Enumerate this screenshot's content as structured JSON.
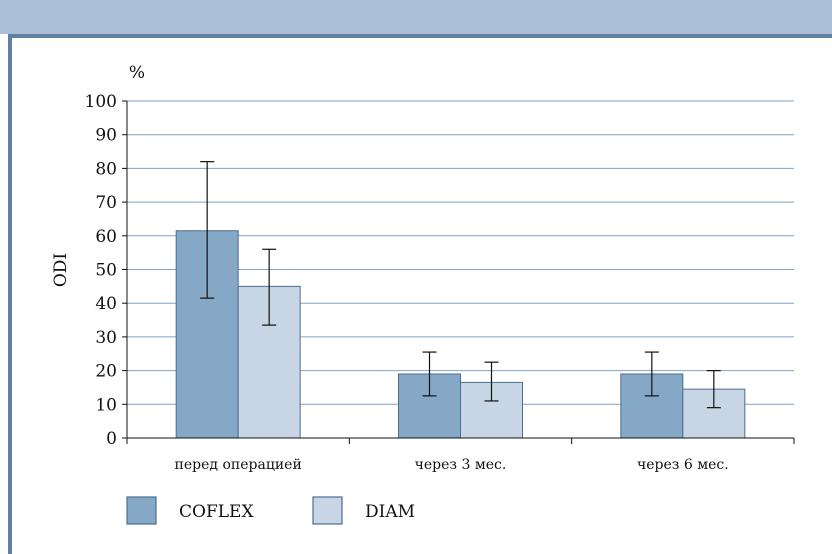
{
  "chart_data": {
    "type": "bar",
    "ylabel": "ODI",
    "yunit": "%",
    "ylim": [
      0,
      100
    ],
    "yticks": [
      0,
      10,
      20,
      30,
      40,
      50,
      60,
      70,
      80,
      90,
      100
    ],
    "grid": true,
    "legend_position": "bottom-left",
    "categories": [
      "перед операцией",
      "через 3 мес.",
      "через 6 мес."
    ],
    "series": [
      {
        "name": "COFLEX",
        "color": "#85a8c6",
        "values": [
          61.5,
          19,
          19
        ],
        "err_low": [
          41.5,
          12.5,
          12.5
        ],
        "err_high": [
          82,
          25.5,
          25.5
        ]
      },
      {
        "name": "DIAM",
        "color": "#c7d5e4",
        "values": [
          45,
          16.5,
          14.5
        ],
        "err_low": [
          33.5,
          11,
          9
        ],
        "err_high": [
          56,
          22.5,
          20
        ]
      }
    ]
  },
  "colors": {
    "top_band": "#a9c0d6",
    "frame": "#5f80a0",
    "grid": "#7fa2c2",
    "bar_stroke": "#4d6e8e"
  }
}
